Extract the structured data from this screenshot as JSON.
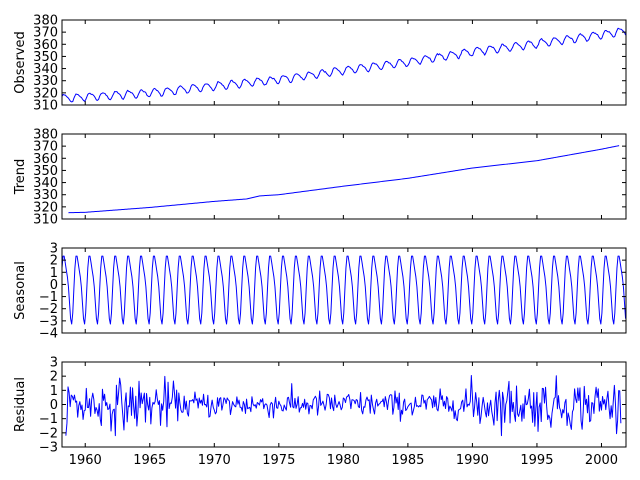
{
  "chart_data": [
    {
      "type": "line",
      "title": "",
      "xlabel": "",
      "ylabel": "Observed",
      "xlim": [
        1958.2,
        2001.9
      ],
      "ylim": [
        310,
        380
      ],
      "yticks": [
        310,
        320,
        330,
        340,
        350,
        360,
        370,
        380
      ],
      "xticks": [
        1960,
        1965,
        1970,
        1975,
        1980,
        1985,
        1990,
        1995,
        2000
      ],
      "show_xtick_labels": false,
      "grid": false,
      "color": "#0000ff",
      "series": [
        {
          "kind": "observed",
          "x_start": 1958.2,
          "x_end": 2001.9,
          "knots": [
            [
              1958.2,
              315.5
            ],
            [
              1965,
              320.0
            ],
            [
              1970,
              325.5
            ],
            [
              1975,
              331.0
            ],
            [
              1980,
              338.5
            ],
            [
              1985,
              345.5
            ],
            [
              1990,
              354.0
            ],
            [
              1995,
              360.5
            ],
            [
              2001.9,
              371.0
            ]
          ],
          "seasonal_amplitude": 3.0
        }
      ]
    },
    {
      "type": "line",
      "title": "",
      "xlabel": "",
      "ylabel": "Trend",
      "xlim": [
        1958.2,
        2001.9
      ],
      "ylim": [
        310,
        380
      ],
      "yticks": [
        310,
        320,
        330,
        340,
        350,
        360,
        370,
        380
      ],
      "xticks": [
        1960,
        1965,
        1970,
        1975,
        1980,
        1985,
        1990,
        1995,
        2000
      ],
      "show_xtick_labels": false,
      "grid": false,
      "color": "#0000ff",
      "series": [
        {
          "kind": "trend",
          "x_start": 1958.7,
          "x_end": 2001.4,
          "knots": [
            [
              1958.7,
              315.2
            ],
            [
              1960,
              315.5
            ],
            [
              1965,
              319.5
            ],
            [
              1970,
              324.5
            ],
            [
              1972.5,
              326.5
            ],
            [
              1973.5,
              329.0
            ],
            [
              1975,
              330.0
            ],
            [
              1980,
              337.0
            ],
            [
              1985,
              343.5
            ],
            [
              1990,
              352.0
            ],
            [
              1995,
              358.0
            ],
            [
              2000,
              367.5
            ],
            [
              2001.4,
              370.5
            ]
          ]
        }
      ]
    },
    {
      "type": "line",
      "title": "",
      "xlabel": "",
      "ylabel": "Seasonal",
      "xlim": [
        1958.2,
        2001.9
      ],
      "ylim": [
        -4,
        3
      ],
      "yticks": [
        -4,
        -3,
        -2,
        -1,
        0,
        1,
        2,
        3
      ],
      "xticks": [
        1960,
        1965,
        1970,
        1975,
        1980,
        1985,
        1990,
        1995,
        2000
      ],
      "show_xtick_labels": false,
      "grid": false,
      "color": "#0000ff",
      "series": [
        {
          "kind": "seasonal",
          "x_start": 1958.2,
          "x_end": 2001.9,
          "amplitude_high": 3.0,
          "amplitude_low": -3.3,
          "period_years": 1.0
        }
      ]
    },
    {
      "type": "line",
      "title": "",
      "xlabel": "",
      "ylabel": "Residual",
      "xlim": [
        1958.2,
        2001.9
      ],
      "ylim": [
        -3,
        3
      ],
      "yticks": [
        -3,
        -2,
        -1,
        0,
        1,
        2,
        3
      ],
      "xticks": [
        1960,
        1965,
        1970,
        1975,
        1980,
        1985,
        1990,
        1995,
        2000
      ],
      "show_xtick_labels": true,
      "grid": false,
      "color": "#0000ff",
      "series": [
        {
          "kind": "residual",
          "x_start": 1958.5,
          "x_end": 2001.5,
          "typical_range": [
            -2.2,
            2.2
          ]
        }
      ]
    }
  ]
}
